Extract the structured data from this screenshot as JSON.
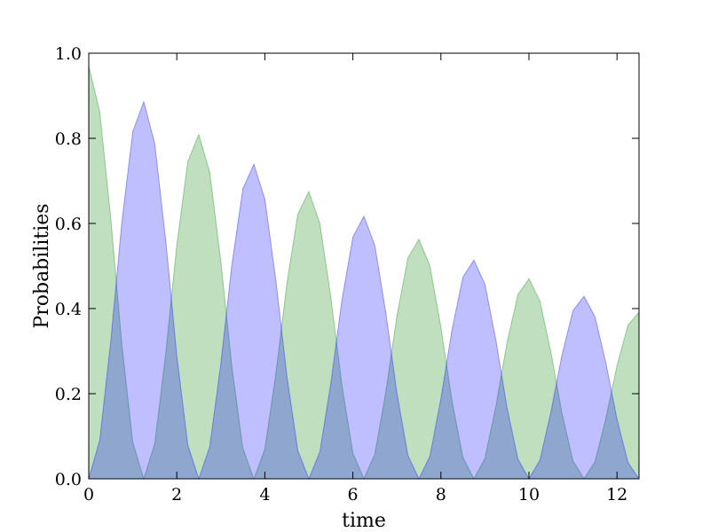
{
  "chart_data": {
    "type": "area",
    "xlabel": "time",
    "ylabel": "Probabilities",
    "x": [
      0,
      0.25,
      0.5,
      0.75,
      1,
      1.25,
      1.5,
      1.75,
      2,
      2.25,
      2.5,
      2.75,
      3,
      3.25,
      3.5,
      3.75,
      4,
      4.25,
      4.5,
      4.75,
      5,
      5.25,
      5.5,
      5.75,
      6,
      6.25,
      6.5,
      6.75,
      7,
      7.25,
      7.5,
      7.75,
      8,
      8.25,
      8.5,
      8.75,
      9,
      9.25,
      9.5,
      9.75,
      10,
      10.25,
      10.5,
      10.75,
      11,
      11.25,
      11.5,
      11.75,
      12,
      12.25,
      12.5
    ],
    "series": [
      {
        "color": "#008000",
        "values": [
          0.97,
          0.862,
          0.612,
          0.317,
          0.086,
          0,
          0.083,
          0.295,
          0.549,
          0.745,
          0.809,
          0.719,
          0.511,
          0.265,
          0.072,
          0,
          0.069,
          0.246,
          0.458,
          0.622,
          0.675,
          0.6,
          0.426,
          0.221,
          0.06,
          0,
          0.058,
          0.205,
          0.382,
          0.519,
          0.563,
          0.5,
          0.356,
          0.184,
          0.05,
          0,
          0.048,
          0.171,
          0.319,
          0.433,
          0.47,
          0.417,
          0.297,
          0.154,
          0.042,
          0,
          0.04,
          0.143,
          0.266,
          0.361,
          0.392
        ]
      },
      {
        "color": "#0000ff",
        "values": [
          0,
          0.091,
          0.323,
          0.601,
          0.816,
          0.886,
          0.787,
          0.559,
          0.29,
          0.079,
          0,
          0.076,
          0.27,
          0.502,
          0.681,
          0.739,
          0.657,
          0.467,
          0.242,
          0.066,
          0,
          0.063,
          0.225,
          0.419,
          0.568,
          0.617,
          0.548,
          0.389,
          0.202,
          0.055,
          0,
          0.053,
          0.188,
          0.349,
          0.474,
          0.514,
          0.457,
          0.325,
          0.168,
          0.046,
          0,
          0.044,
          0.157,
          0.291,
          0.395,
          0.429,
          0.381,
          0.271,
          0.14,
          0.038,
          0
        ]
      }
    ],
    "xlim": [
      0,
      12.5
    ],
    "xticks": [
      0,
      2,
      4,
      6,
      8,
      10,
      12
    ],
    "ylim": [
      0,
      1
    ],
    "yticks": [
      {
        "value": 0,
        "label": "0.0"
      },
      0.2,
      0.4,
      0.6,
      0.8,
      {
        "value": 1,
        "label": "1.0"
      }
    ]
  }
}
